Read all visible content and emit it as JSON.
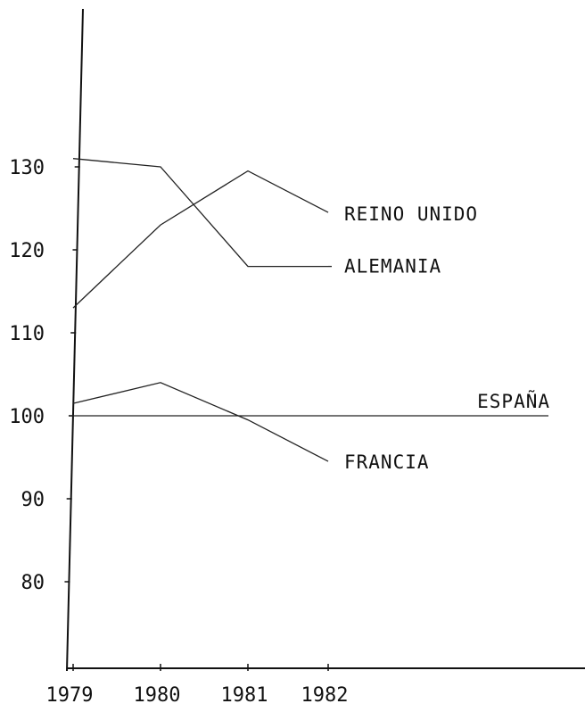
{
  "chart_data": {
    "type": "line",
    "title": "",
    "xlabel": "",
    "ylabel": "",
    "categories": [
      "1979",
      "1980",
      "1981",
      "1982"
    ],
    "y_ticks": [
      "80",
      "90",
      "100",
      "110",
      "120",
      "130"
    ],
    "ylim": [
      70,
      140
    ],
    "series": [
      {
        "name": "REINO UNIDO",
        "values": [
          113,
          123,
          129.5,
          124.5
        ]
      },
      {
        "name": "ALEMANIA",
        "values": [
          131,
          130,
          118,
          118
        ]
      },
      {
        "name": "ESPAÑA",
        "values": [
          100,
          100,
          100,
          100
        ]
      },
      {
        "name": "FRANCIA",
        "values": [
          101.5,
          104,
          99.5,
          94.5
        ]
      }
    ],
    "legend": "none (series labelled at line ends)",
    "grid": false
  }
}
